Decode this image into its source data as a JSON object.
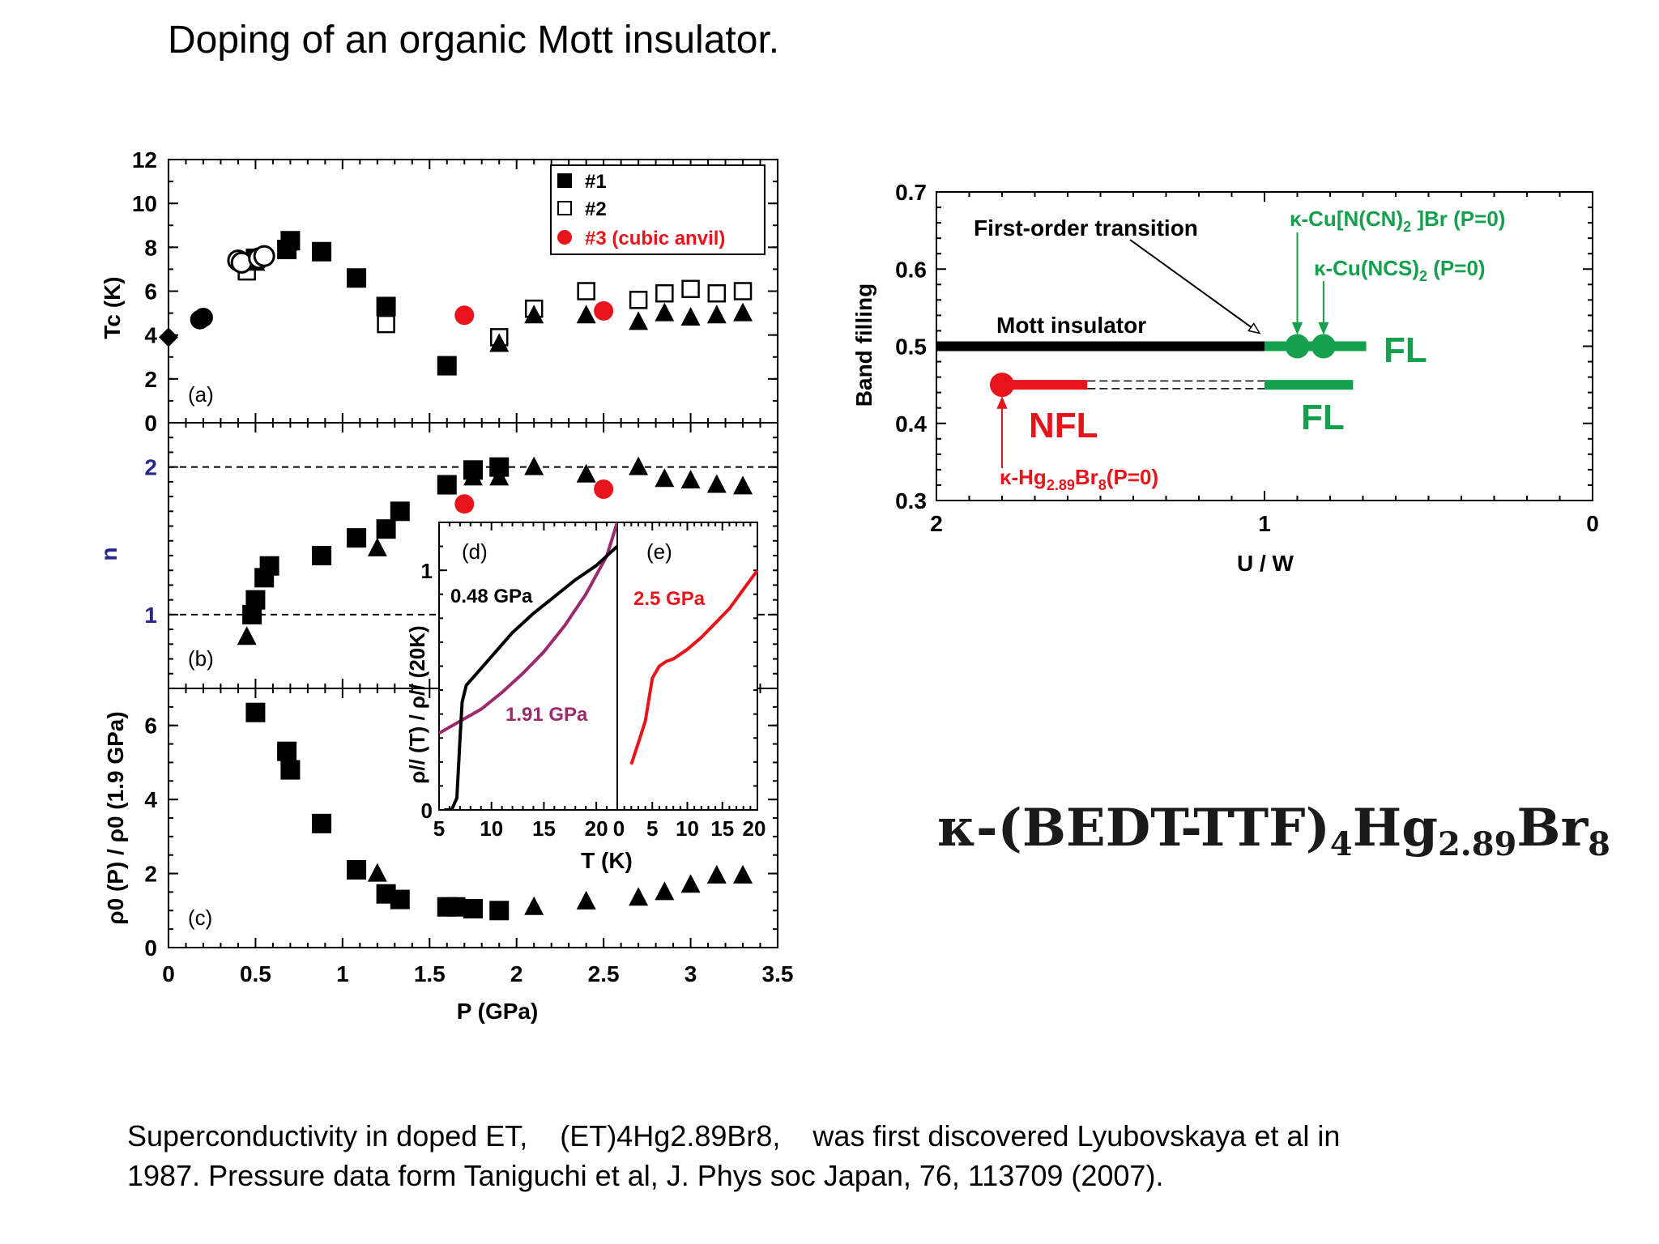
{
  "slide": {
    "title": "Doping of an organic Mott insulator.",
    "caption_line1": "Superconductivity in doped ET,    (ET)4Hg2.89Br8,    was first discovered Lyubovskaya et al in",
    "caption_line2": "1987. Pressure data form Taniguchi et al, J. Phys soc Japan, 76, 113709 (2007).",
    "formula_prefix": "κ-(BEDT-TTF)",
    "formula_sub1": "4",
    "formula_mid": "Hg",
    "formula_sub2": "2.89",
    "formula_end": "Br",
    "formula_sub3": "8"
  },
  "colors": {
    "red": "#e8141b",
    "green": "#14a04c",
    "purple": "#9b2b6e",
    "black": "#000000",
    "axis_blue": "#26268c"
  },
  "chart_data": [
    {
      "id": "panel-a",
      "type": "scatter",
      "panel_label": "(a)",
      "ylabel": "Tc (K)",
      "xlim": [
        0,
        3.5
      ],
      "ylim": [
        0,
        12
      ],
      "yticks": [
        "0",
        "2",
        "4",
        "6",
        "8",
        "10",
        "12"
      ],
      "legend": {
        "placement": "top-right",
        "entries": [
          "#1",
          "#2",
          "#3 (cubic anvil)"
        ]
      },
      "series": [
        {
          "name": "#1",
          "marker": "filled-square",
          "points": [
            [
              0.5,
              7.5
            ],
            [
              0.68,
              7.9
            ],
            [
              0.7,
              8.3
            ],
            [
              0.88,
              7.8
            ],
            [
              1.08,
              6.6
            ],
            [
              1.25,
              5.3
            ],
            [
              1.6,
              2.6
            ]
          ]
        },
        {
          "name": "#2",
          "marker": "open-square",
          "points": [
            [
              0.45,
              6.9
            ],
            [
              1.25,
              4.5
            ],
            [
              1.9,
              3.9
            ],
            [
              2.1,
              5.2
            ],
            [
              2.4,
              6.0
            ],
            [
              2.7,
              5.6
            ],
            [
              2.85,
              5.9
            ],
            [
              3.0,
              6.1
            ],
            [
              3.15,
              5.9
            ],
            [
              3.3,
              6.0
            ]
          ]
        },
        {
          "name": "#3 (cubic anvil)",
          "marker": "red-circle",
          "points": [
            [
              1.7,
              4.9
            ],
            [
              2.5,
              5.1
            ]
          ]
        },
        {
          "name": "",
          "marker": "filled-triangle",
          "points": [
            [
              0.45,
              7.4
            ],
            [
              0.5,
              7.3
            ],
            [
              1.9,
              3.6
            ],
            [
              2.1,
              4.9
            ],
            [
              2.4,
              4.9
            ],
            [
              2.7,
              4.6
            ],
            [
              2.85,
              5.0
            ],
            [
              3.0,
              4.8
            ],
            [
              3.15,
              4.9
            ],
            [
              3.3,
              5.0
            ]
          ]
        },
        {
          "name": "",
          "marker": "open-circle",
          "points": [
            [
              0.4,
              7.4
            ],
            [
              0.42,
              7.3
            ],
            [
              0.52,
              7.5
            ],
            [
              0.55,
              7.6
            ]
          ]
        },
        {
          "name": "",
          "marker": "filled-circle",
          "points": [
            [
              0.18,
              4.7
            ],
            [
              0.2,
              4.8
            ]
          ]
        },
        {
          "name": "",
          "marker": "filled-diamond",
          "points": [
            [
              0.0,
              3.9
            ]
          ]
        }
      ]
    },
    {
      "id": "panel-b",
      "type": "scatter",
      "panel_label": "(b)",
      "ylabel": "n",
      "xlim": [
        0,
        3.5
      ],
      "ylim": [
        0.5,
        2.3
      ],
      "yticks": [
        "1",
        "2"
      ],
      "reference_lines": [
        1,
        2
      ],
      "series": [
        {
          "name": "#1",
          "marker": "filled-square",
          "points": [
            [
              0.48,
              1.0
            ],
            [
              0.5,
              1.1
            ],
            [
              0.55,
              1.25
            ],
            [
              0.58,
              1.33
            ],
            [
              0.88,
              1.4
            ],
            [
              1.08,
              1.52
            ],
            [
              1.25,
              1.58
            ],
            [
              1.33,
              1.7
            ],
            [
              1.6,
              1.88
            ],
            [
              1.75,
              1.98
            ],
            [
              1.9,
              2.0
            ]
          ]
        },
        {
          "name": "",
          "marker": "filled-triangle",
          "points": [
            [
              0.45,
              0.85
            ],
            [
              1.2,
              1.45
            ],
            [
              1.75,
              1.93
            ],
            [
              1.9,
              1.93
            ],
            [
              2.1,
              2.0
            ],
            [
              2.4,
              1.95
            ],
            [
              2.7,
              2.0
            ],
            [
              2.85,
              1.92
            ],
            [
              3.0,
              1.91
            ],
            [
              3.15,
              1.88
            ],
            [
              3.3,
              1.87
            ]
          ]
        },
        {
          "name": "#3 (cubic anvil)",
          "marker": "red-circle",
          "points": [
            [
              1.7,
              1.75
            ],
            [
              2.5,
              1.85
            ]
          ]
        }
      ]
    },
    {
      "id": "panel-c",
      "type": "scatter",
      "panel_label": "(c)",
      "ylabel": "ρ0 (P) / ρ0 (1.9 GPa)",
      "xlabel": "P (GPa)",
      "xlim": [
        0,
        3.5
      ],
      "ylim": [
        0,
        7
      ],
      "xticks": [
        "0",
        "0.5",
        "1",
        "1.5",
        "2",
        "2.5",
        "3",
        "3.5"
      ],
      "yticks": [
        "0",
        "2",
        "4",
        "6"
      ],
      "series": [
        {
          "name": "#1",
          "marker": "filled-square",
          "points": [
            [
              0.5,
              6.35
            ],
            [
              0.68,
              5.3
            ],
            [
              0.7,
              4.8
            ],
            [
              0.88,
              3.35
            ],
            [
              1.08,
              2.1
            ],
            [
              1.25,
              1.45
            ],
            [
              1.33,
              1.3
            ],
            [
              1.6,
              1.1
            ],
            [
              1.65,
              1.1
            ],
            [
              1.75,
              1.05
            ],
            [
              1.9,
              1.0
            ]
          ]
        },
        {
          "name": "",
          "marker": "filled-triangle",
          "points": [
            [
              1.2,
              2.0
            ],
            [
              2.1,
              1.1
            ],
            [
              2.4,
              1.25
            ],
            [
              2.7,
              1.35
            ],
            [
              2.85,
              1.5
            ],
            [
              3.0,
              1.7
            ],
            [
              3.15,
              1.95
            ],
            [
              3.3,
              1.95
            ]
          ]
        }
      ]
    },
    {
      "id": "panel-d",
      "type": "line",
      "panel_label": "(d)",
      "ylabel": "ρ// (T) / ρ// (20K)",
      "xlim": [
        5,
        22
      ],
      "ylim": [
        0,
        1.2
      ],
      "xticks": [
        "5",
        "10",
        "15",
        "20"
      ],
      "yticks": [
        "0",
        "1"
      ],
      "series": [
        {
          "name": "0.48 GPa",
          "color": "#000000",
          "x": [
            5.5,
            6.2,
            6.7,
            7.0,
            7.2,
            7.6,
            8.2,
            10,
            12,
            14,
            16,
            18,
            20,
            22
          ],
          "y": [
            0.0,
            0.0,
            0.05,
            0.3,
            0.45,
            0.52,
            0.55,
            0.64,
            0.74,
            0.82,
            0.89,
            0.96,
            1.02,
            1.1
          ]
        },
        {
          "name": "1.91 GPa",
          "color": "#9b2b6e",
          "x": [
            5,
            7,
            9,
            11,
            13,
            15,
            17,
            19,
            20,
            21,
            22
          ],
          "y": [
            0.32,
            0.37,
            0.42,
            0.49,
            0.57,
            0.66,
            0.77,
            0.9,
            0.98,
            1.06,
            1.2
          ]
        }
      ]
    },
    {
      "id": "panel-e",
      "type": "line",
      "panel_label": "(e)",
      "xlabel": "T (K)",
      "xlim": [
        0,
        20
      ],
      "ylim": [
        0,
        1.2
      ],
      "xticks": [
        "0",
        "5",
        "10",
        "15",
        "20"
      ],
      "series": [
        {
          "name": "2.5 GPa",
          "color": "#e8141b",
          "x": [
            2,
            3,
            4,
            5,
            6,
            7,
            8,
            9,
            10,
            12,
            14,
            16,
            18,
            20
          ],
          "y": [
            0.19,
            0.28,
            0.37,
            0.55,
            0.6,
            0.62,
            0.63,
            0.65,
            0.67,
            0.72,
            0.78,
            0.84,
            0.92,
            1.0
          ]
        }
      ]
    },
    {
      "id": "phase-diagram",
      "type": "line",
      "xlabel": "U / W",
      "ylabel": "Band filling",
      "xlim": [
        2,
        0
      ],
      "ylim": [
        0.3,
        0.7
      ],
      "xticks": [
        "2",
        "1",
        "0"
      ],
      "yticks": [
        "0.3",
        "0.4",
        "0.5",
        "0.6",
        "0.7"
      ],
      "annotations": [
        "First-order transition",
        "Mott insulator",
        "FL",
        "FL",
        "NFL",
        "κ-Cu[N(CN)2 ]Br (P=0)",
        "κ-Cu(NCS)2 (P=0)",
        "κ-Hg2.89Br8(P=0)"
      ],
      "series": [
        {
          "name": "Mott insulator",
          "color": "#000000",
          "x": [
            2.0,
            1.0
          ],
          "y": [
            0.5,
            0.5
          ]
        },
        {
          "name": "FL",
          "color": "#14a04c",
          "x": [
            1.0,
            0.69
          ],
          "y": [
            0.5,
            0.5
          ]
        },
        {
          "name": "FL",
          "color": "#14a04c",
          "x": [
            1.0,
            0.73
          ],
          "y": [
            0.45,
            0.45
          ]
        },
        {
          "name": "NFL",
          "color": "#e8141b",
          "x": [
            1.8,
            1.54
          ],
          "y": [
            0.45,
            0.45
          ]
        }
      ],
      "points": [
        {
          "name": "κ-Cu[N(CN)2 ]Br (P=0)",
          "x": 0.9,
          "y": 0.5,
          "color": "#14a04c"
        },
        {
          "name": "κ-Cu(NCS)2 (P=0)",
          "x": 0.82,
          "y": 0.5,
          "color": "#14a04c"
        },
        {
          "name": "κ-Hg2.89Br8(P=0)",
          "x": 1.8,
          "y": 0.45,
          "color": "#e8141b"
        }
      ]
    }
  ]
}
